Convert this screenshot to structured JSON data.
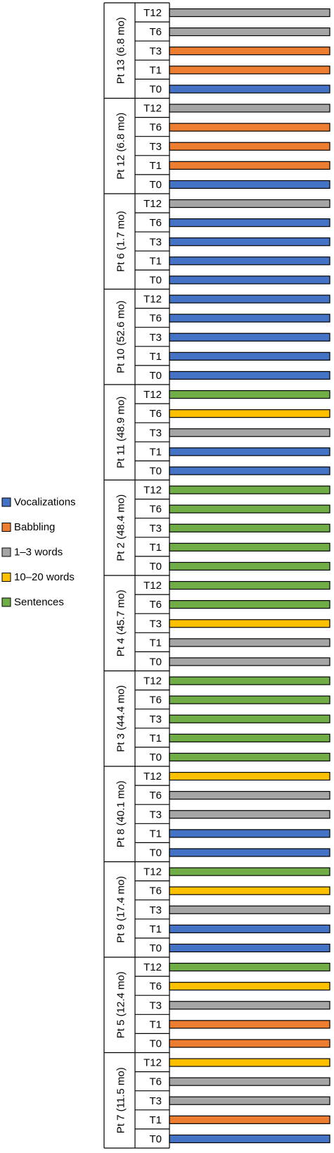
{
  "chart_data": {
    "type": "bar",
    "orientation": "horizontal",
    "title": "",
    "xlabel": "",
    "ylabel": "",
    "legend_placement": "left",
    "legend": [
      {
        "key": "vocalizations",
        "label": "Vocalizations",
        "color": "#4472C4"
      },
      {
        "key": "babbling",
        "label": "Babbling",
        "color": "#ED7D31"
      },
      {
        "key": "words_1_3",
        "label": "1–3 words",
        "color": "#A5A5A5"
      },
      {
        "key": "words_10_20",
        "label": "10–20 words",
        "color": "#FFC000"
      },
      {
        "key": "sentences",
        "label": "Sentences",
        "color": "#70AD47"
      }
    ],
    "groups": [
      {
        "label": "Pt 13 (6.8 mo)",
        "bars": [
          {
            "time": "T12",
            "category": "words_1_3"
          },
          {
            "time": "T6",
            "category": "words_1_3"
          },
          {
            "time": "T3",
            "category": "babbling"
          },
          {
            "time": "T1",
            "category": "babbling"
          },
          {
            "time": "T0",
            "category": "vocalizations"
          }
        ]
      },
      {
        "label": "Pt 12 (6.8 mo)",
        "bars": [
          {
            "time": "T12",
            "category": "words_1_3"
          },
          {
            "time": "T6",
            "category": "babbling"
          },
          {
            "time": "T3",
            "category": "babbling"
          },
          {
            "time": "T1",
            "category": "babbling"
          },
          {
            "time": "T0",
            "category": "vocalizations"
          }
        ]
      },
      {
        "label": "Pt 6 (1.7 mo)",
        "bars": [
          {
            "time": "T12",
            "category": "words_1_3"
          },
          {
            "time": "T6",
            "category": "vocalizations"
          },
          {
            "time": "T3",
            "category": "vocalizations"
          },
          {
            "time": "T1",
            "category": "vocalizations"
          },
          {
            "time": "T0",
            "category": "vocalizations"
          }
        ]
      },
      {
        "label": "Pt 10 (52.6 mo)",
        "bars": [
          {
            "time": "T12",
            "category": "vocalizations"
          },
          {
            "time": "T6",
            "category": "vocalizations"
          },
          {
            "time": "T3",
            "category": "vocalizations"
          },
          {
            "time": "T1",
            "category": "vocalizations"
          },
          {
            "time": "T0",
            "category": "vocalizations"
          }
        ]
      },
      {
        "label": "Pt 11 (48.9 mo)",
        "bars": [
          {
            "time": "T12",
            "category": "sentences"
          },
          {
            "time": "T6",
            "category": "words_10_20"
          },
          {
            "time": "T3",
            "category": "words_1_3"
          },
          {
            "time": "T1",
            "category": "vocalizations"
          },
          {
            "time": "T0",
            "category": "vocalizations"
          }
        ]
      },
      {
        "label": "Pt 2 (48.4 mo)",
        "bars": [
          {
            "time": "T12",
            "category": "sentences"
          },
          {
            "time": "T6",
            "category": "sentences"
          },
          {
            "time": "T3",
            "category": "sentences"
          },
          {
            "time": "T1",
            "category": "sentences"
          },
          {
            "time": "T0",
            "category": "sentences"
          }
        ]
      },
      {
        "label": "Pt 4 (45.7 mo)",
        "bars": [
          {
            "time": "T12",
            "category": "sentences"
          },
          {
            "time": "T6",
            "category": "sentences"
          },
          {
            "time": "T3",
            "category": "words_10_20"
          },
          {
            "time": "T1",
            "category": "words_1_3"
          },
          {
            "time": "T0",
            "category": "words_1_3"
          }
        ]
      },
      {
        "label": "Pt 3 (44.4 mo)",
        "bars": [
          {
            "time": "T12",
            "category": "sentences"
          },
          {
            "time": "T6",
            "category": "sentences"
          },
          {
            "time": "T3",
            "category": "sentences"
          },
          {
            "time": "T1",
            "category": "sentences"
          },
          {
            "time": "T0",
            "category": "sentences"
          }
        ]
      },
      {
        "label": "Pt 8 (40.1 mo)",
        "bars": [
          {
            "time": "T12",
            "category": "words_10_20"
          },
          {
            "time": "T6",
            "category": "words_1_3"
          },
          {
            "time": "T3",
            "category": "words_1_3"
          },
          {
            "time": "T1",
            "category": "vocalizations"
          },
          {
            "time": "T0",
            "category": "vocalizations"
          }
        ]
      },
      {
        "label": "Pt 9 (17.4 mo)",
        "bars": [
          {
            "time": "T12",
            "category": "sentences"
          },
          {
            "time": "T6",
            "category": "words_10_20"
          },
          {
            "time": "T3",
            "category": "words_1_3"
          },
          {
            "time": "T1",
            "category": "vocalizations"
          },
          {
            "time": "T0",
            "category": "vocalizations"
          }
        ]
      },
      {
        "label": "Pt 5 (12.4 mo)",
        "bars": [
          {
            "time": "T12",
            "category": "sentences"
          },
          {
            "time": "T6",
            "category": "words_10_20"
          },
          {
            "time": "T3",
            "category": "words_1_3"
          },
          {
            "time": "T1",
            "category": "babbling"
          },
          {
            "time": "T0",
            "category": "babbling"
          }
        ]
      },
      {
        "label": "Pt 7 (11.5 mo)",
        "bars": [
          {
            "time": "T12",
            "category": "words_10_20"
          },
          {
            "time": "T6",
            "category": "words_1_3"
          },
          {
            "time": "T3",
            "category": "words_1_3"
          },
          {
            "time": "T1",
            "category": "babbling"
          },
          {
            "time": "T0",
            "category": "vocalizations"
          }
        ]
      }
    ]
  }
}
